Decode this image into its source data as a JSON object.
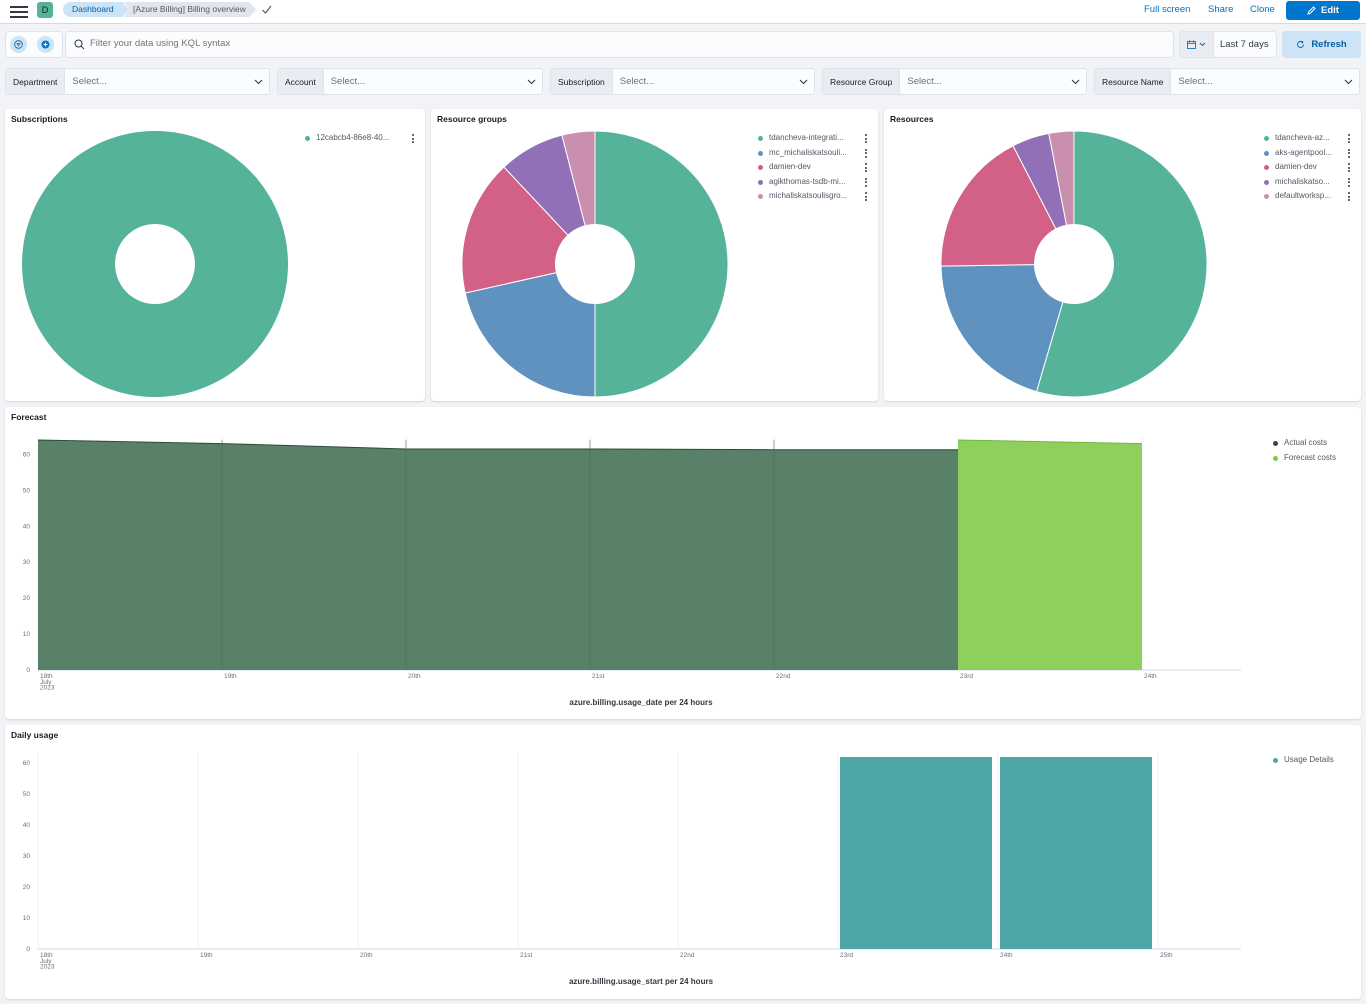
{
  "header": {
    "space_initial": "D",
    "breadcrumbs": [
      "Dashboard",
      "[Azure Billing] Billing overview"
    ],
    "links": {
      "full_screen": "Full screen",
      "share": "Share",
      "clone": "Clone",
      "edit": "Edit"
    }
  },
  "query_bar": {
    "placeholder": "Filter your data using KQL syntax",
    "time_range": "Last 7 days",
    "refresh_label": "Refresh"
  },
  "controls": [
    {
      "label": "Department",
      "value": "Select..."
    },
    {
      "label": "Account",
      "value": "Select..."
    },
    {
      "label": "Subscription",
      "value": "Select..."
    },
    {
      "label": "Resource Group",
      "value": "Select..."
    },
    {
      "label": "Resource Name",
      "value": "Select..."
    }
  ],
  "colors": {
    "green": "#54b399",
    "blue": "#6092c0",
    "pink": "#d36086",
    "purple": "#9170b8",
    "light_pink": "#ca8eae",
    "actual": "#588168",
    "actual_line": "#2d4a3a",
    "forecast": "#8fcf5c",
    "bar": "#4ea6a6"
  },
  "panels": {
    "subscriptions": {
      "title": "Subscriptions",
      "legend": [
        "12cabcb4-86e8-40..."
      ]
    },
    "resource_groups": {
      "title": "Resource groups",
      "legend": [
        "tdancheva-integrati...",
        "mc_michaliskatsouli...",
        "damien-dev",
        "agikthomas-tsdb-mi...",
        "michaliskatsoulisgro..."
      ]
    },
    "resources": {
      "title": "Resources",
      "legend": [
        "tdancheva-az...",
        "aks-agentpool...",
        "damien-dev",
        "michaliskatso...",
        "defaultworksp..."
      ]
    },
    "forecast": {
      "title": "Forecast",
      "legend": [
        "Actual costs",
        "Forecast costs"
      ]
    },
    "daily_usage": {
      "title": "Daily usage",
      "legend": [
        "Usage Details"
      ]
    }
  },
  "chart_data": [
    {
      "type": "pie",
      "title": "Subscriptions",
      "categories": [
        "12cabcb4-86e8-40..."
      ],
      "values": [
        100
      ]
    },
    {
      "type": "pie",
      "title": "Resource groups",
      "categories": [
        "tdancheva-integrati...",
        "mc_michaliskatsouli...",
        "damien-dev",
        "agikthomas-tsdb-mi...",
        "michaliskatsoulisgro..."
      ],
      "values": [
        50,
        21.5,
        16.5,
        8,
        4
      ]
    },
    {
      "type": "pie",
      "title": "Resources",
      "categories": [
        "tdancheva-az...",
        "aks-agentpool...",
        "damien-dev",
        "michaliskatso...",
        "defaultworksp..."
      ],
      "values": [
        54,
        20,
        17.5,
        4.5,
        3
      ]
    },
    {
      "type": "area",
      "title": "Forecast",
      "xlabel": "azure.billing.usage_date per 24 hours",
      "x_ticks": [
        "18th",
        "19th",
        "20th",
        "21st",
        "22nd",
        "23rd",
        "24th"
      ],
      "x_sub": [
        "July",
        "2023"
      ],
      "ylim": [
        0,
        64
      ],
      "y_ticks": [
        0,
        10,
        20,
        30,
        40,
        50,
        60
      ],
      "series": [
        {
          "name": "Actual costs",
          "x": [
            "18th",
            "19th",
            "20th",
            "21st",
            "22nd",
            "23rd"
          ],
          "values": [
            64,
            63,
            61.5,
            61.5,
            61.3,
            61.3
          ]
        },
        {
          "name": "Forecast costs",
          "x": [
            "23rd",
            "24th"
          ],
          "values": [
            64,
            63
          ]
        }
      ]
    },
    {
      "type": "bar",
      "title": "Daily usage",
      "xlabel": "azure.billing.usage_start per 24 hours",
      "x_ticks": [
        "18th",
        "19th",
        "20th",
        "21st",
        "22nd",
        "23rd",
        "24th",
        "25th"
      ],
      "x_sub": [
        "July",
        "2023"
      ],
      "ylim": [
        0,
        62
      ],
      "y_ticks": [
        0,
        10,
        20,
        30,
        40,
        50,
        60
      ],
      "series": [
        {
          "name": "Usage Details",
          "x": [
            "23rd",
            "24th"
          ],
          "values": [
            62,
            62
          ]
        }
      ]
    }
  ]
}
